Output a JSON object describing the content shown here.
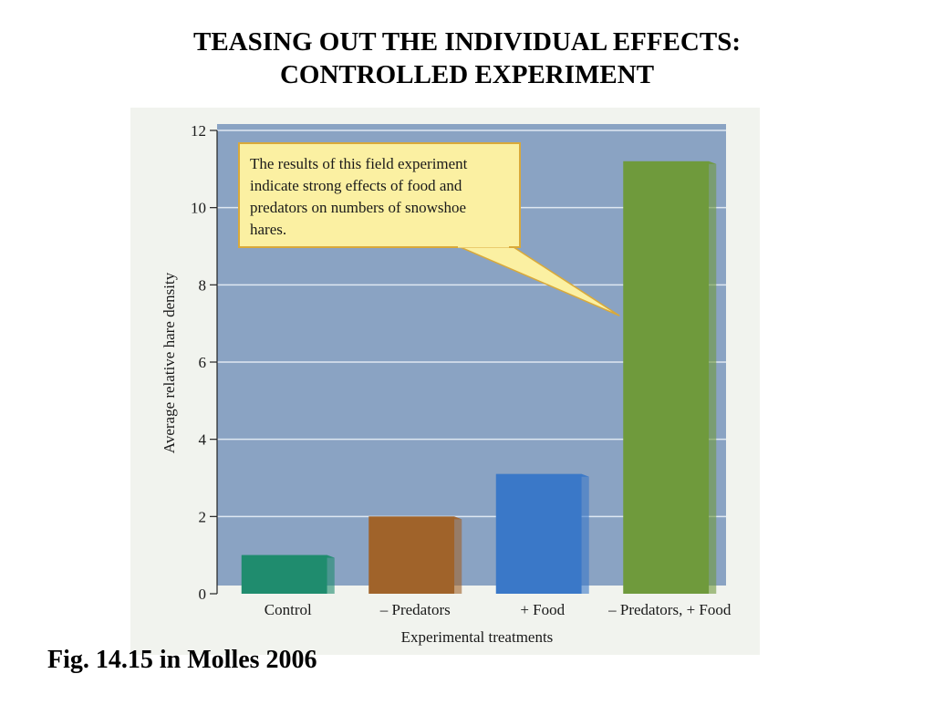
{
  "slide": {
    "title_line1": "TEASING OUT THE INDIVIDUAL EFFECTS:",
    "title_line2": "CONTROLLED EXPERIMENT",
    "caption": "Fig. 14.15 in Molles 2006"
  },
  "chart_data": {
    "type": "bar",
    "categories": [
      "Control",
      "– Predators",
      "+ Food",
      "– Predators, + Food"
    ],
    "values": [
      1.0,
      2.0,
      3.1,
      11.2
    ],
    "bar_colors": [
      "#1f8c6e",
      "#a0632a",
      "#3a78c8",
      "#6f9a3c"
    ],
    "xlabel": "Experimental treatments",
    "ylabel": "Average relative hare density",
    "ylim": [
      0,
      12
    ],
    "yticks": [
      0,
      2,
      4,
      6,
      8,
      10,
      12
    ],
    "grid": true,
    "annotation": {
      "lines": [
        "The results of this field experiment",
        "indicate strong effects of food and",
        "predators on numbers of snowshoe",
        "hares."
      ],
      "points_to": "– Predators, + Food"
    },
    "colors": {
      "plot_background": "#8aa3c3",
      "gridline": "#dfe8f2",
      "callout_fill": "#fbf0a2",
      "callout_border": "#d9a93a"
    }
  }
}
